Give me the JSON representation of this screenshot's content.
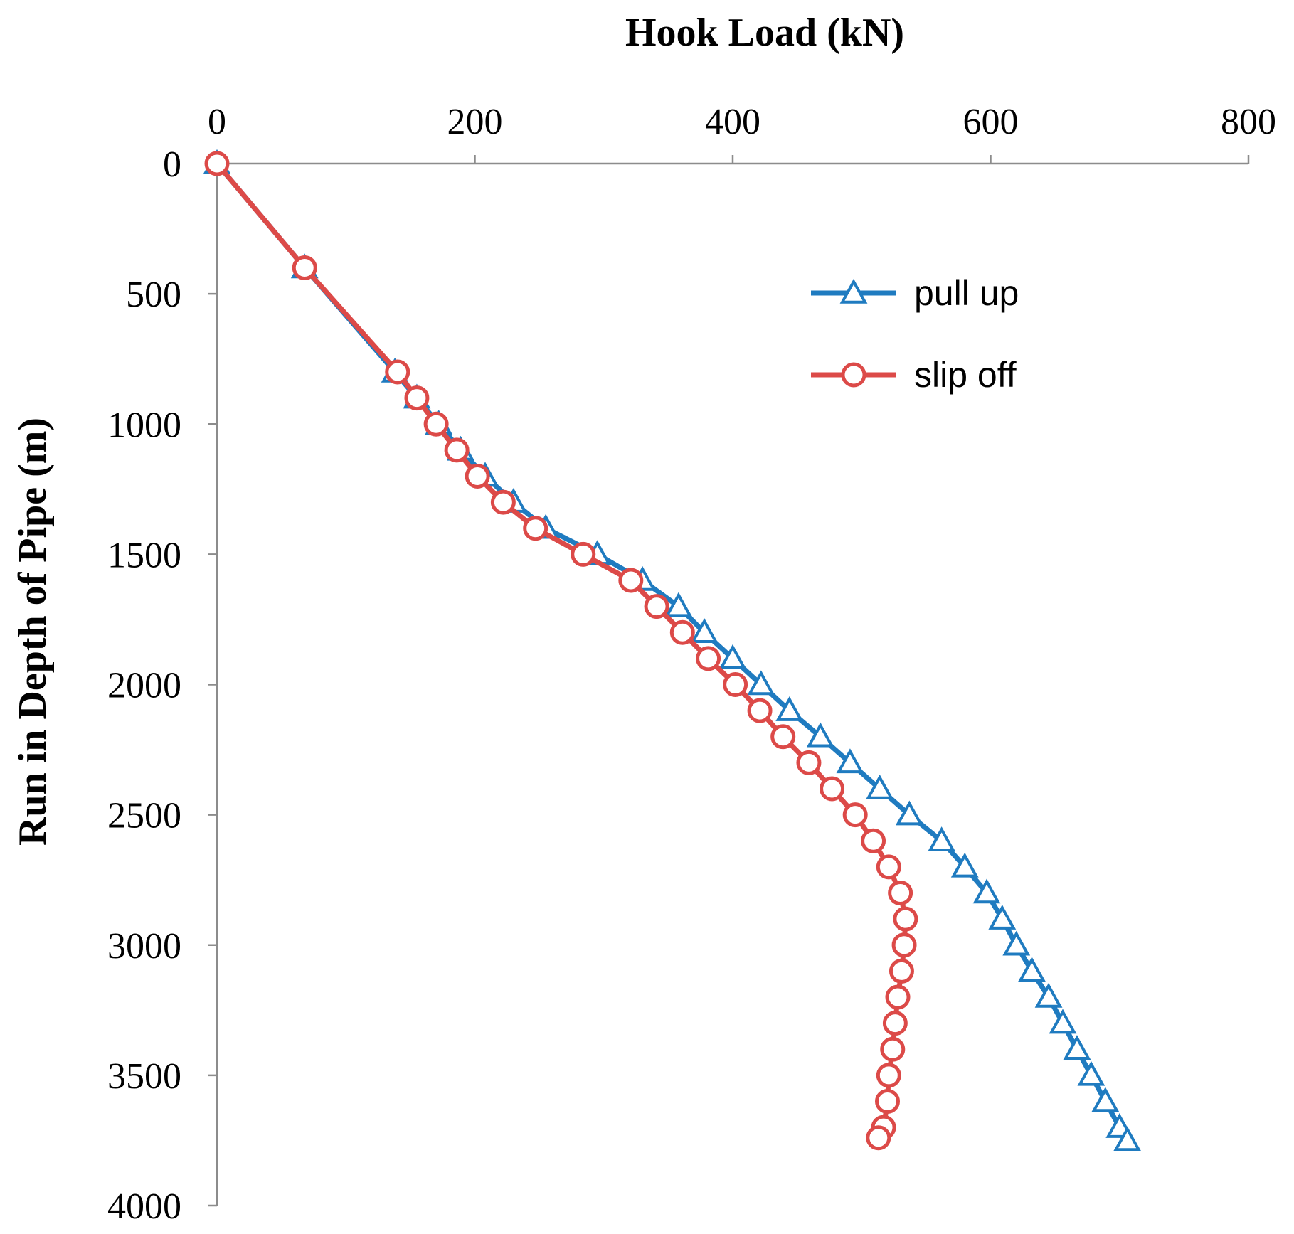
{
  "chart_data": {
    "type": "line",
    "title": "",
    "xlabel": "Hook Load (kN)",
    "ylabel": "Run in Depth of Pipe (m)",
    "x_axis_position": "top",
    "y_axis_inverted": true,
    "xlim": [
      0,
      800
    ],
    "ylim": [
      0,
      4000
    ],
    "x_ticks": [
      0,
      200,
      400,
      600,
      800
    ],
    "y_ticks": [
      0,
      500,
      1000,
      1500,
      2000,
      2500,
      3000,
      3500,
      4000
    ],
    "grid": false,
    "legend_position": "top-right",
    "series": [
      {
        "name": "pull up",
        "color": "#1f7bc0",
        "marker": "triangle",
        "points": [
          [
            0,
            0
          ],
          [
            68,
            400
          ],
          [
            138,
            800
          ],
          [
            155,
            900
          ],
          [
            172,
            1000
          ],
          [
            189,
            1100
          ],
          [
            208,
            1200
          ],
          [
            230,
            1300
          ],
          [
            255,
            1400
          ],
          [
            295,
            1500
          ],
          [
            330,
            1600
          ],
          [
            358,
            1700
          ],
          [
            378,
            1800
          ],
          [
            400,
            1900
          ],
          [
            422,
            2000
          ],
          [
            444,
            2100
          ],
          [
            468,
            2200
          ],
          [
            491,
            2300
          ],
          [
            514,
            2400
          ],
          [
            537,
            2500
          ],
          [
            562,
            2600
          ],
          [
            580,
            2700
          ],
          [
            597,
            2800
          ],
          [
            609,
            2900
          ],
          [
            620,
            3000
          ],
          [
            632,
            3100
          ],
          [
            645,
            3200
          ],
          [
            656,
            3300
          ],
          [
            667,
            3400
          ],
          [
            678,
            3500
          ],
          [
            689,
            3600
          ],
          [
            700,
            3700
          ],
          [
            706,
            3750
          ]
        ]
      },
      {
        "name": "slip off",
        "color": "#dc4a48",
        "marker": "circle",
        "points": [
          [
            0,
            0
          ],
          [
            68,
            400
          ],
          [
            140,
            800
          ],
          [
            155,
            900
          ],
          [
            170,
            1000
          ],
          [
            186,
            1100
          ],
          [
            202,
            1200
          ],
          [
            222,
            1300
          ],
          [
            247,
            1400
          ],
          [
            284,
            1500
          ],
          [
            321,
            1600
          ],
          [
            341,
            1700
          ],
          [
            361,
            1800
          ],
          [
            381,
            1900
          ],
          [
            402,
            2000
          ],
          [
            421,
            2100
          ],
          [
            439,
            2200
          ],
          [
            459,
            2300
          ],
          [
            477,
            2400
          ],
          [
            495,
            2500
          ],
          [
            509,
            2600
          ],
          [
            521,
            2700
          ],
          [
            530,
            2800
          ],
          [
            534,
            2900
          ],
          [
            533,
            3000
          ],
          [
            531,
            3100
          ],
          [
            528,
            3200
          ],
          [
            526,
            3300
          ],
          [
            524,
            3400
          ],
          [
            521,
            3500
          ],
          [
            520,
            3600
          ],
          [
            517,
            3700
          ],
          [
            513,
            3740
          ]
        ]
      }
    ]
  }
}
